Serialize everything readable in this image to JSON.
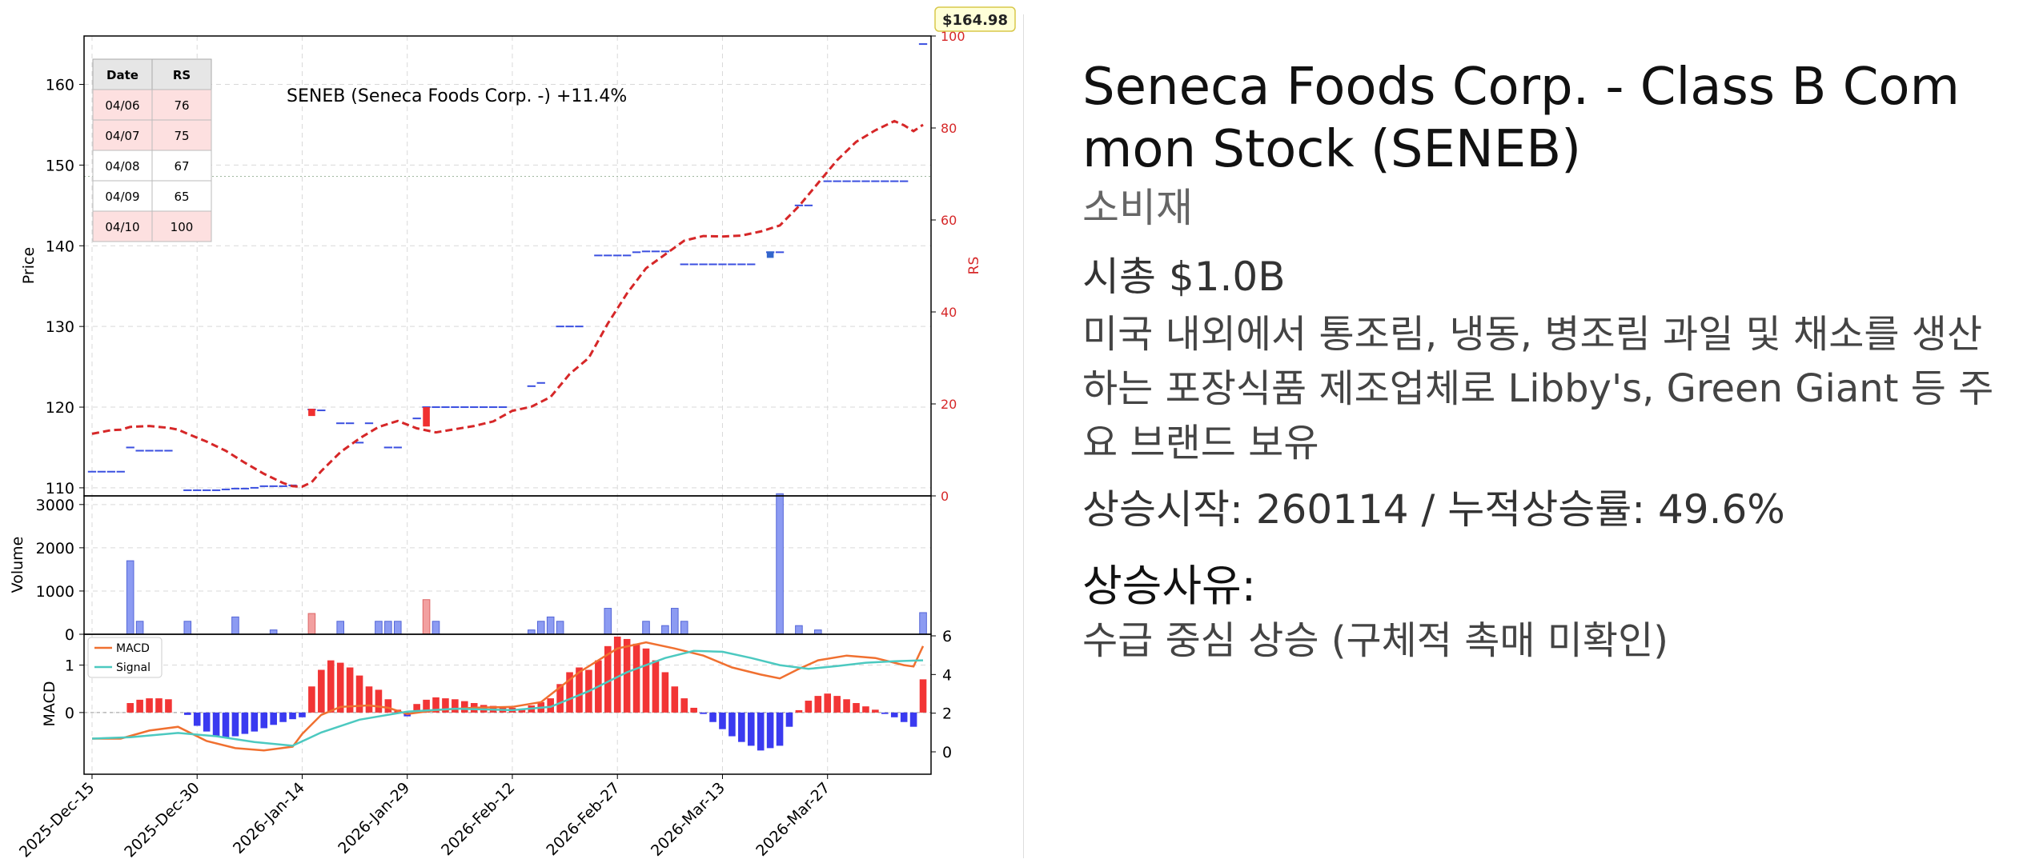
{
  "info": {
    "title": "Seneca Foods Corp. - Class B Common Stock (SENEB)",
    "sector": "소비재",
    "market_cap": "시총 $1.0B",
    "description": "미국 내외에서 통조림, 냉동, 병조림 과일 및 채소를 생산하는 포장식품 제조업체로 Libby's, Green Giant 등 주요 브랜드 보유",
    "rise_info": "상승시작: 260114 / 누적상승률: 49.6%",
    "reason_title": "상승사유:",
    "reason": "수급 중심 상승 (구체적 촉매 미확인)"
  },
  "chart_data": {
    "type": "line",
    "title": "SENEB (Seneca Foods Corp. -)  +11.4%",
    "last_price_badge": "$164.98",
    "price_axis": {
      "label": "Price",
      "ylim": [
        109,
        166
      ],
      "ticks": [
        110,
        120,
        130,
        140,
        150,
        160
      ]
    },
    "rs_axis": {
      "label": "RS",
      "ylim": [
        0,
        100
      ],
      "ticks": [
        0,
        20,
        40,
        60,
        80,
        100
      ],
      "color": "#d62728"
    },
    "volume_axis": {
      "label": "Volume",
      "ylim": [
        0,
        3200
      ],
      "ticks": [
        0,
        1000,
        2000,
        3000
      ]
    },
    "macd_axis": {
      "label": "MACD",
      "ylim": [
        -1.3,
        1.65
      ],
      "ticks": [
        0,
        1
      ],
      "right_ticks": [
        0,
        2,
        4,
        6
      ]
    },
    "x_ticks": [
      "2025-Dec-15",
      "2025-Dec-30",
      "2026-Jan-14",
      "2026-Jan-29",
      "2026-Feb-12",
      "2026-Feb-27",
      "2026-Mar-13",
      "2026-Mar-27"
    ],
    "x_tick_index": [
      0,
      11,
      22,
      33,
      44,
      55,
      66,
      77
    ],
    "n_days": 88,
    "grid": true,
    "rs_table": {
      "headers": [
        "Date",
        "RS"
      ],
      "rows": [
        [
          "04/06",
          "76"
        ],
        [
          "04/07",
          "75"
        ],
        [
          "04/08",
          "67"
        ],
        [
          "04/09",
          "65"
        ],
        [
          "04/10",
          "100"
        ]
      ],
      "highlight": [
        true,
        true,
        false,
        false,
        true
      ]
    },
    "reference_line": 148.6,
    "price_marks": [
      {
        "i": 0,
        "p": 112
      },
      {
        "i": 1,
        "p": 112
      },
      {
        "i": 2,
        "p": 112
      },
      {
        "i": 3,
        "p": 112
      },
      {
        "i": 4,
        "p": 115
      },
      {
        "i": 5,
        "p": 114.6
      },
      {
        "i": 6,
        "p": 114.6
      },
      {
        "i": 7,
        "p": 114.6
      },
      {
        "i": 8,
        "p": 114.6
      },
      {
        "i": 10,
        "p": 109.7
      },
      {
        "i": 11,
        "p": 109.7
      },
      {
        "i": 12,
        "p": 109.7
      },
      {
        "i": 13,
        "p": 109.7
      },
      {
        "i": 14,
        "p": 109.8
      },
      {
        "i": 15,
        "p": 109.9
      },
      {
        "i": 16,
        "p": 109.9
      },
      {
        "i": 17,
        "p": 110
      },
      {
        "i": 18,
        "p": 110.2
      },
      {
        "i": 19,
        "p": 110.2
      },
      {
        "i": 20,
        "p": 110.2
      },
      {
        "i": 21,
        "p": 110.3
      },
      {
        "i": 23,
        "p": 119.7
      },
      {
        "i": 24,
        "p": 119.6
      },
      {
        "i": 26,
        "p": 118
      },
      {
        "i": 27,
        "p": 118
      },
      {
        "i": 28,
        "p": 115.6
      },
      {
        "i": 29,
        "p": 118
      },
      {
        "i": 31,
        "p": 115
      },
      {
        "i": 32,
        "p": 115
      },
      {
        "i": 34,
        "p": 118.6
      },
      {
        "i": 35,
        "p": 120
      },
      {
        "i": 36,
        "p": 120
      },
      {
        "i": 37,
        "p": 120
      },
      {
        "i": 38,
        "p": 120
      },
      {
        "i": 39,
        "p": 120
      },
      {
        "i": 40,
        "p": 120
      },
      {
        "i": 41,
        "p": 120
      },
      {
        "i": 42,
        "p": 120
      },
      {
        "i": 43,
        "p": 120
      },
      {
        "i": 46,
        "p": 122.6
      },
      {
        "i": 47,
        "p": 123
      },
      {
        "i": 49,
        "p": 130
      },
      {
        "i": 50,
        "p": 130
      },
      {
        "i": 51,
        "p": 130
      },
      {
        "i": 53,
        "p": 138.8
      },
      {
        "i": 54,
        "p": 138.8
      },
      {
        "i": 55,
        "p": 138.8
      },
      {
        "i": 56,
        "p": 138.8
      },
      {
        "i": 57,
        "p": 139.2
      },
      {
        "i": 58,
        "p": 139.3
      },
      {
        "i": 59,
        "p": 139.3
      },
      {
        "i": 60,
        "p": 139.3
      },
      {
        "i": 62,
        "p": 137.7
      },
      {
        "i": 63,
        "p": 137.7
      },
      {
        "i": 64,
        "p": 137.7
      },
      {
        "i": 65,
        "p": 137.7
      },
      {
        "i": 66,
        "p": 137.7
      },
      {
        "i": 67,
        "p": 137.7
      },
      {
        "i": 68,
        "p": 137.7
      },
      {
        "i": 69,
        "p": 137.7
      },
      {
        "i": 71,
        "p": 139.2
      },
      {
        "i": 72,
        "p": 139.2
      },
      {
        "i": 74,
        "p": 145
      },
      {
        "i": 75,
        "p": 145
      },
      {
        "i": 77,
        "p": 148
      },
      {
        "i": 78,
        "p": 148
      },
      {
        "i": 79,
        "p": 148
      },
      {
        "i": 80,
        "p": 148
      },
      {
        "i": 81,
        "p": 148
      },
      {
        "i": 82,
        "p": 148
      },
      {
        "i": 83,
        "p": 148
      },
      {
        "i": 84,
        "p": 148
      },
      {
        "i": 85,
        "p": 148
      },
      {
        "i": 87,
        "p": 165
      }
    ],
    "candles": [
      {
        "i": 23,
        "open": 119.8,
        "close": 118.9,
        "color": "#f03030"
      },
      {
        "i": 35,
        "open": 120,
        "close": 117.6,
        "color": "#f03030"
      },
      {
        "i": 71,
        "open": 139.3,
        "close": 138.5,
        "color": "#3366cc"
      }
    ],
    "rs_line": [
      {
        "i": 0,
        "v": 13.5
      },
      {
        "i": 2,
        "v": 14.3
      },
      {
        "i": 3,
        "v": 14.4
      },
      {
        "i": 4,
        "v": 15
      },
      {
        "i": 6,
        "v": 15.2
      },
      {
        "i": 8,
        "v": 14.8
      },
      {
        "i": 9,
        "v": 14.4
      },
      {
        "i": 10,
        "v": 13.5
      },
      {
        "i": 12,
        "v": 11.8
      },
      {
        "i": 14,
        "v": 9.8
      },
      {
        "i": 16,
        "v": 7.2
      },
      {
        "i": 18,
        "v": 4.8
      },
      {
        "i": 20,
        "v": 2.8
      },
      {
        "i": 21,
        "v": 2.1
      },
      {
        "i": 22,
        "v": 2
      },
      {
        "i": 23,
        "v": 3
      },
      {
        "i": 24,
        "v": 5.4
      },
      {
        "i": 26,
        "v": 9.5
      },
      {
        "i": 28,
        "v": 12.5
      },
      {
        "i": 30,
        "v": 15
      },
      {
        "i": 32,
        "v": 16.3
      },
      {
        "i": 34,
        "v": 14.7
      },
      {
        "i": 36,
        "v": 13.8
      },
      {
        "i": 38,
        "v": 14.5
      },
      {
        "i": 40,
        "v": 15.2
      },
      {
        "i": 42,
        "v": 16.2
      },
      {
        "i": 44,
        "v": 18.5
      },
      {
        "i": 46,
        "v": 19.4
      },
      {
        "i": 48,
        "v": 21.5
      },
      {
        "i": 50,
        "v": 26.5
      },
      {
        "i": 52,
        "v": 30
      },
      {
        "i": 54,
        "v": 37.5
      },
      {
        "i": 56,
        "v": 44
      },
      {
        "i": 58,
        "v": 49.5
      },
      {
        "i": 60,
        "v": 52.5
      },
      {
        "i": 62,
        "v": 55.5
      },
      {
        "i": 64,
        "v": 56.5
      },
      {
        "i": 66,
        "v": 56.4
      },
      {
        "i": 68,
        "v": 56.6
      },
      {
        "i": 70,
        "v": 57.5
      },
      {
        "i": 72,
        "v": 58.8
      },
      {
        "i": 74,
        "v": 63
      },
      {
        "i": 76,
        "v": 68
      },
      {
        "i": 78,
        "v": 73
      },
      {
        "i": 80,
        "v": 77
      },
      {
        "i": 82,
        "v": 79.5
      },
      {
        "i": 84,
        "v": 81.5
      },
      {
        "i": 85,
        "v": 80.6
      },
      {
        "i": 86,
        "v": 79.3
      },
      {
        "i": 87,
        "v": 80.7
      }
    ],
    "volume": [
      {
        "i": 4,
        "v": 1700,
        "c": "blue"
      },
      {
        "i": 5,
        "v": 300,
        "c": "blue"
      },
      {
        "i": 10,
        "v": 300,
        "c": "blue"
      },
      {
        "i": 15,
        "v": 400,
        "c": "blue"
      },
      {
        "i": 19,
        "v": 100,
        "c": "blue"
      },
      {
        "i": 23,
        "v": 480,
        "c": "red"
      },
      {
        "i": 26,
        "v": 300,
        "c": "blue"
      },
      {
        "i": 30,
        "v": 300,
        "c": "blue"
      },
      {
        "i": 31,
        "v": 300,
        "c": "blue"
      },
      {
        "i": 32,
        "v": 300,
        "c": "blue"
      },
      {
        "i": 35,
        "v": 800,
        "c": "red"
      },
      {
        "i": 36,
        "v": 300,
        "c": "blue"
      },
      {
        "i": 46,
        "v": 100,
        "c": "blue"
      },
      {
        "i": 47,
        "v": 300,
        "c": "blue"
      },
      {
        "i": 48,
        "v": 400,
        "c": "blue"
      },
      {
        "i": 49,
        "v": 300,
        "c": "blue"
      },
      {
        "i": 54,
        "v": 600,
        "c": "blue"
      },
      {
        "i": 58,
        "v": 300,
        "c": "blue"
      },
      {
        "i": 60,
        "v": 200,
        "c": "blue"
      },
      {
        "i": 61,
        "v": 600,
        "c": "blue"
      },
      {
        "i": 62,
        "v": 300,
        "c": "blue"
      },
      {
        "i": 72,
        "v": 3250,
        "c": "blue"
      },
      {
        "i": 74,
        "v": 200,
        "c": "blue"
      },
      {
        "i": 76,
        "v": 100,
        "c": "blue"
      },
      {
        "i": 87,
        "v": 500,
        "c": "blue"
      }
    ],
    "macd_legend": [
      "MACD",
      "Signal"
    ],
    "macd_hist": [
      0,
      0,
      0,
      0,
      0.2,
      0.27,
      0.3,
      0.3,
      0.28,
      0,
      -0.05,
      -0.28,
      -0.4,
      -0.5,
      -0.54,
      -0.5,
      -0.45,
      -0.4,
      -0.33,
      -0.26,
      -0.2,
      -0.14,
      -0.1,
      0.55,
      0.9,
      1.1,
      1.05,
      0.95,
      0.78,
      0.55,
      0.48,
      0.28,
      0.06,
      -0.08,
      0.18,
      0.27,
      0.32,
      0.3,
      0.28,
      0.24,
      0.2,
      0.16,
      0.14,
      0.12,
      0.1,
      0.08,
      0.15,
      0.22,
      0.3,
      0.6,
      0.85,
      0.95,
      0.9,
      1.1,
      1.4,
      1.6,
      1.55,
      1.45,
      1.35,
      1.1,
      0.85,
      0.55,
      0.3,
      0.1,
      -0.03,
      -0.2,
      -0.35,
      -0.5,
      -0.62,
      -0.7,
      -0.8,
      -0.75,
      -0.7,
      -0.3,
      0.05,
      0.25,
      0.35,
      0.4,
      0.35,
      0.28,
      0.2,
      0.13,
      0.06,
      -0.03,
      -0.1,
      -0.2,
      -0.3,
      0.7
    ],
    "macd_line": [
      {
        "i": 0,
        "v": -0.55
      },
      {
        "i": 3,
        "v": -0.55
      },
      {
        "i": 6,
        "v": -0.38
      },
      {
        "i": 9,
        "v": -0.3
      },
      {
        "i": 12,
        "v": -0.6
      },
      {
        "i": 15,
        "v": -0.75
      },
      {
        "i": 18,
        "v": -0.8
      },
      {
        "i": 21,
        "v": -0.72
      },
      {
        "i": 22,
        "v": -0.45
      },
      {
        "i": 24,
        "v": -0.05
      },
      {
        "i": 26,
        "v": 0.12
      },
      {
        "i": 29,
        "v": 0.15
      },
      {
        "i": 31,
        "v": 0.1
      },
      {
        "i": 33,
        "v": -0.03
      },
      {
        "i": 36,
        "v": 0.05
      },
      {
        "i": 40,
        "v": 0.1
      },
      {
        "i": 44,
        "v": 0.12
      },
      {
        "i": 47,
        "v": 0.22
      },
      {
        "i": 51,
        "v": 0.85
      },
      {
        "i": 55,
        "v": 1.35
      },
      {
        "i": 58,
        "v": 1.48
      },
      {
        "i": 61,
        "v": 1.35
      },
      {
        "i": 64,
        "v": 1.2
      },
      {
        "i": 67,
        "v": 0.95
      },
      {
        "i": 70,
        "v": 0.8
      },
      {
        "i": 72,
        "v": 0.72
      },
      {
        "i": 74,
        "v": 0.92
      },
      {
        "i": 76,
        "v": 1.1
      },
      {
        "i": 79,
        "v": 1.2
      },
      {
        "i": 82,
        "v": 1.15
      },
      {
        "i": 85,
        "v": 1.0
      },
      {
        "i": 86,
        "v": 0.97
      },
      {
        "i": 87,
        "v": 1.4
      }
    ],
    "signal_line": [
      {
        "i": 0,
        "v": -0.55
      },
      {
        "i": 4,
        "v": -0.52
      },
      {
        "i": 9,
        "v": -0.43
      },
      {
        "i": 13,
        "v": -0.5
      },
      {
        "i": 17,
        "v": -0.62
      },
      {
        "i": 21,
        "v": -0.7
      },
      {
        "i": 24,
        "v": -0.42
      },
      {
        "i": 28,
        "v": -0.15
      },
      {
        "i": 33,
        "v": 0.02
      },
      {
        "i": 38,
        "v": 0.08
      },
      {
        "i": 44,
        "v": 0.05
      },
      {
        "i": 48,
        "v": 0.12
      },
      {
        "i": 52,
        "v": 0.45
      },
      {
        "i": 56,
        "v": 0.85
      },
      {
        "i": 60,
        "v": 1.15
      },
      {
        "i": 63,
        "v": 1.3
      },
      {
        "i": 66,
        "v": 1.28
      },
      {
        "i": 69,
        "v": 1.15
      },
      {
        "i": 72,
        "v": 1.0
      },
      {
        "i": 75,
        "v": 0.92
      },
      {
        "i": 78,
        "v": 0.98
      },
      {
        "i": 81,
        "v": 1.05
      },
      {
        "i": 84,
        "v": 1.08
      },
      {
        "i": 87,
        "v": 1.1
      }
    ]
  }
}
